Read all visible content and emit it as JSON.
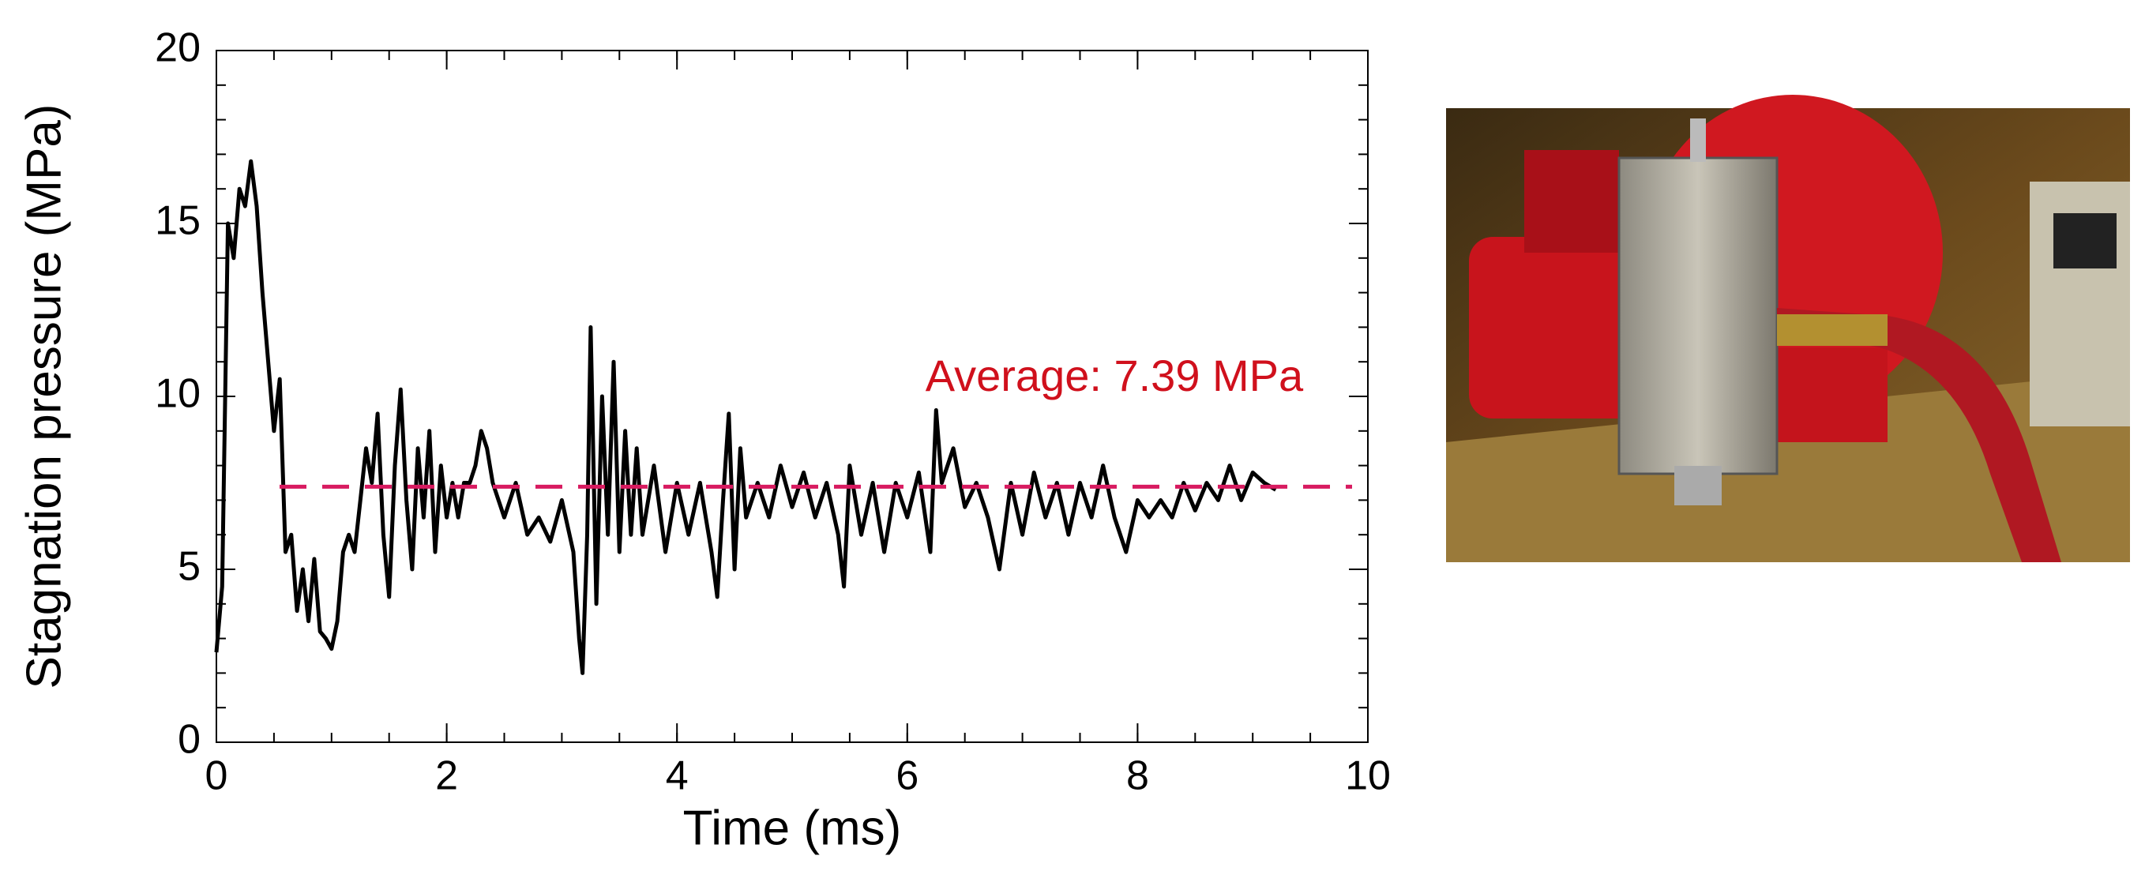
{
  "chart_data": {
    "type": "line",
    "xlabel": "Time (ms)",
    "ylabel": "Stagnation pressure (MPa)",
    "annotation": "Average: 7.39 MPa",
    "average_line": 7.39,
    "average_color": "#d81b60",
    "xlim": [
      0,
      10
    ],
    "xticks": [
      0,
      2,
      4,
      6,
      8,
      10
    ],
    "xminor_step": 0.5,
    "ylim": [
      0,
      20
    ],
    "yticks": [
      0,
      5,
      10,
      15,
      20
    ],
    "yminor_step": 1,
    "x": [
      0,
      0.05,
      0.1,
      0.15,
      0.2,
      0.25,
      0.3,
      0.35,
      0.4,
      0.45,
      0.5,
      0.55,
      0.6,
      0.65,
      0.7,
      0.75,
      0.8,
      0.85,
      0.9,
      0.95,
      1.0,
      1.05,
      1.1,
      1.15,
      1.2,
      1.25,
      1.3,
      1.35,
      1.4,
      1.45,
      1.5,
      1.55,
      1.6,
      1.65,
      1.7,
      1.75,
      1.8,
      1.85,
      1.9,
      1.95,
      2.0,
      2.05,
      2.1,
      2.15,
      2.2,
      2.25,
      2.3,
      2.35,
      2.4,
      2.45,
      2.5,
      2.6,
      2.7,
      2.8,
      2.9,
      3.0,
      3.1,
      3.15,
      3.18,
      3.22,
      3.25,
      3.3,
      3.35,
      3.4,
      3.45,
      3.5,
      3.55,
      3.6,
      3.65,
      3.7,
      3.8,
      3.9,
      4.0,
      4.1,
      4.2,
      4.3,
      4.35,
      4.4,
      4.45,
      4.5,
      4.55,
      4.6,
      4.7,
      4.8,
      4.9,
      5.0,
      5.1,
      5.2,
      5.3,
      5.4,
      5.45,
      5.5,
      5.6,
      5.7,
      5.8,
      5.9,
      6.0,
      6.1,
      6.2,
      6.25,
      6.3,
      6.4,
      6.5,
      6.6,
      6.7,
      6.8,
      6.9,
      7.0,
      7.1,
      7.2,
      7.3,
      7.4,
      7.5,
      7.6,
      7.7,
      7.8,
      7.9,
      8.0,
      8.1,
      8.2,
      8.3,
      8.4,
      8.5,
      8.6,
      8.7,
      8.8,
      8.9,
      9.0,
      9.1,
      9.2
    ],
    "series": [
      {
        "color": "#000000",
        "values": [
          2.6,
          4.5,
          15,
          14,
          16,
          15.5,
          16.8,
          15.5,
          13,
          11,
          9,
          10.5,
          5.5,
          6,
          3.8,
          5,
          3.5,
          5.3,
          3.2,
          3,
          2.7,
          3.5,
          5.5,
          6,
          5.5,
          7,
          8.5,
          7.5,
          9.5,
          6,
          4.2,
          8,
          10.2,
          7,
          5,
          8.5,
          6.5,
          9,
          5.5,
          8,
          6.5,
          7.5,
          6.5,
          7.5,
          7.5,
          8,
          9,
          8.5,
          7.5,
          7,
          6.5,
          7.5,
          6,
          6.5,
          5.8,
          7,
          5.5,
          3,
          2,
          6,
          12,
          4,
          10,
          6,
          11,
          5.5,
          9,
          6,
          8.5,
          6,
          8,
          5.5,
          7.5,
          6,
          7.5,
          5.5,
          4.2,
          7,
          9.5,
          5,
          8.5,
          6.5,
          7.5,
          6.5,
          8,
          6.8,
          7.8,
          6.5,
          7.5,
          6,
          4.5,
          8,
          6,
          7.5,
          5.5,
          7.5,
          6.5,
          7.8,
          5.5,
          9.6,
          7.5,
          8.5,
          6.8,
          7.5,
          6.5,
          5,
          7.5,
          6,
          7.8,
          6.5,
          7.5,
          6,
          7.5,
          6.5,
          8,
          6.5,
          5.5,
          7,
          6.5,
          7,
          6.5,
          7.5,
          6.7,
          7.5,
          7,
          8,
          7,
          7.8,
          7.5,
          7.3
        ]
      }
    ]
  }
}
